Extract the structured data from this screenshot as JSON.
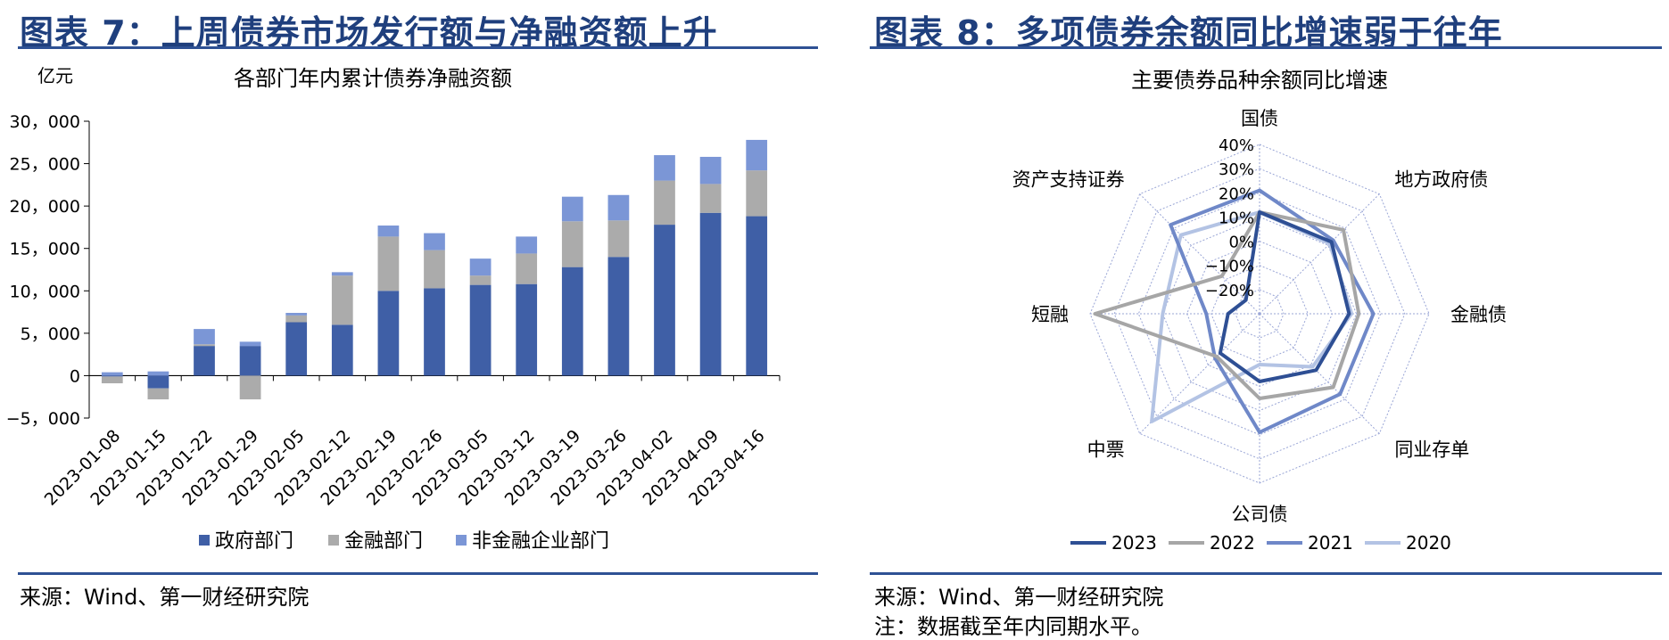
{
  "left": {
    "figure_title": "图表 7：上周债券市场发行额与净融资额上升",
    "source": "来源：Wind、第一财经研究院"
  },
  "right": {
    "figure_title": "图表 8：多项债券余额同比增速弱于往年",
    "source": "来源：Wind、第一财经研究院",
    "note": "注：数据截至年内同期水平。"
  },
  "chart_data": [
    {
      "type": "bar",
      "stacked": true,
      "title": "各部门年内累计债券净融资额",
      "unit_label": "亿元",
      "ylim": [
        -5000,
        30000
      ],
      "yticks": [
        "30，000",
        "25，000",
        "20，000",
        "15，000",
        "10，000",
        "5，000",
        "0",
        "−5，000"
      ],
      "ytick_values": [
        30000,
        25000,
        20000,
        15000,
        10000,
        5000,
        0,
        -5000
      ],
      "categories": [
        "2023-01-08",
        "2023-01-15",
        "2023-01-22",
        "2023-01-29",
        "2023-02-05",
        "2023-02-12",
        "2023-02-19",
        "2023-02-26",
        "2023-03-05",
        "2023-03-12",
        "2023-03-19",
        "2023-03-26",
        "2023-04-02",
        "2023-04-09",
        "2023-04-16"
      ],
      "series": [
        {
          "name": "政府部门",
          "color": "#3f5fa6",
          "values": [
            -100,
            -1500,
            3500,
            3500,
            6300,
            6000,
            10000,
            10300,
            10700,
            10800,
            12800,
            14000,
            17800,
            19200,
            18800
          ]
        },
        {
          "name": "金融部门",
          "color": "#ababab",
          "values": [
            -800,
            -1300,
            200,
            -2800,
            800,
            5800,
            6400,
            4500,
            1100,
            3600,
            5400,
            4300,
            5200,
            3400,
            5400
          ]
        },
        {
          "name": "非金融企业部门",
          "color": "#7b96d6",
          "values": [
            400,
            500,
            1800,
            500,
            300,
            400,
            1300,
            2000,
            2000,
            2000,
            2900,
            3000,
            3000,
            3200,
            3600
          ]
        }
      ],
      "legend_position": "bottom"
    },
    {
      "type": "radar",
      "title": "主要债券品种余额同比增速",
      "axes": [
        "国债",
        "地方政府债",
        "金融债",
        "同业存单",
        "公司债",
        "中票",
        "短融",
        "资产支持证券"
      ],
      "rlim": [
        -0.3,
        0.4
      ],
      "rticks": [
        "40%",
        "30%",
        "20%",
        "10%",
        "0%",
        "−10%",
        "−20%"
      ],
      "rtick_values": [
        0.4,
        0.3,
        0.2,
        0.1,
        0.0,
        -0.1,
        -0.2
      ],
      "series": [
        {
          "name": "2023",
          "color": "#2e4f94",
          "values": [
            0.12,
            0.12,
            0.07,
            0.03,
            -0.02,
            -0.07,
            -0.17,
            -0.22
          ]
        },
        {
          "name": "2022",
          "color": "#a6a6a6",
          "values": [
            0.12,
            0.19,
            0.11,
            0.13,
            0.05,
            -0.05,
            0.38,
            -0.08
          ]
        },
        {
          "name": "2021",
          "color": "#6f88c8",
          "values": [
            0.21,
            0.13,
            0.17,
            0.17,
            0.19,
            -0.04,
            -0.08,
            0.22
          ]
        },
        {
          "name": "2020",
          "color": "#b3c3e4",
          "values": [
            0.12,
            0.11,
            0.08,
            0.01,
            -0.09,
            0.33,
            0.1,
            0.16
          ]
        }
      ],
      "legend_position": "bottom"
    }
  ]
}
